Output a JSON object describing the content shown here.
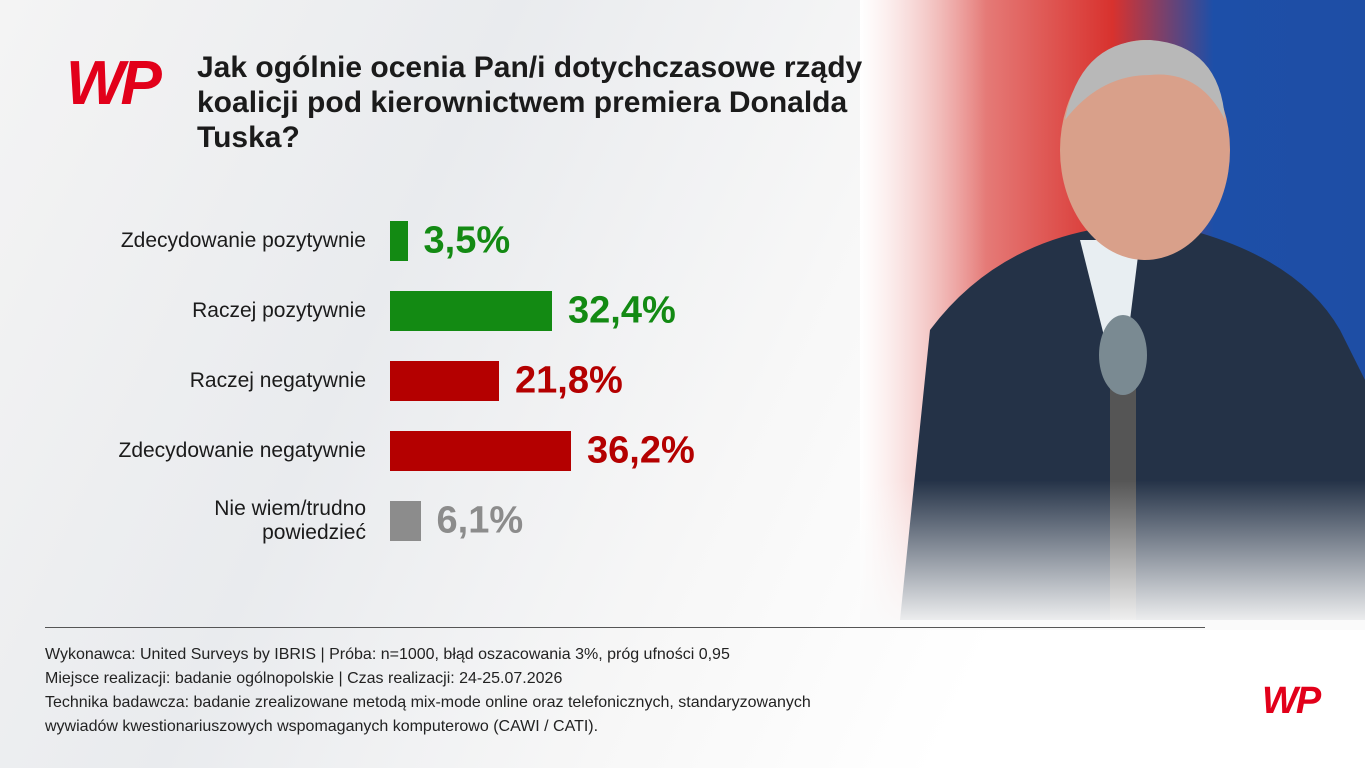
{
  "logo": "WP",
  "chart_data": {
    "type": "bar",
    "orientation": "horizontal",
    "title": "Jak ogólnie ocenia Pan/i dotychczasowe rządy koalicji pod kierownictwem premiera Donalda Tuska?",
    "categories": [
      "Zdecydowanie pozytywnie",
      "Raczej pozytywnie",
      "Raczej negatywnie",
      "Zdecydowanie negatywnie",
      "Nie wiem/trudno\npowiedzieć"
    ],
    "values": [
      3.5,
      32.4,
      21.8,
      36.2,
      6.1
    ],
    "value_labels": [
      "3,5%",
      "32,4%",
      "21,8%",
      "36,2%",
      "6,1%"
    ],
    "colors": [
      "#138a13",
      "#138a13",
      "#b40000",
      "#b40000",
      "#8c8c8c"
    ]
  },
  "footer": [
    "Wykonawca: United Surveys by IBRIS | Próba: n=1000, błąd oszacowania 3%, próg ufności 0,95",
    "Miejsce realizacji: badanie ogólnopolskie | Czas realizacji: 24-25.07.2026",
    "Technika badawcza: badanie zrealizowane metodą mix-mode online oraz telefonicznych, standaryzowanych",
    "wywiadów kwestionariuszowych wspomaganych komputerowo (CAWI / CATI)."
  ]
}
